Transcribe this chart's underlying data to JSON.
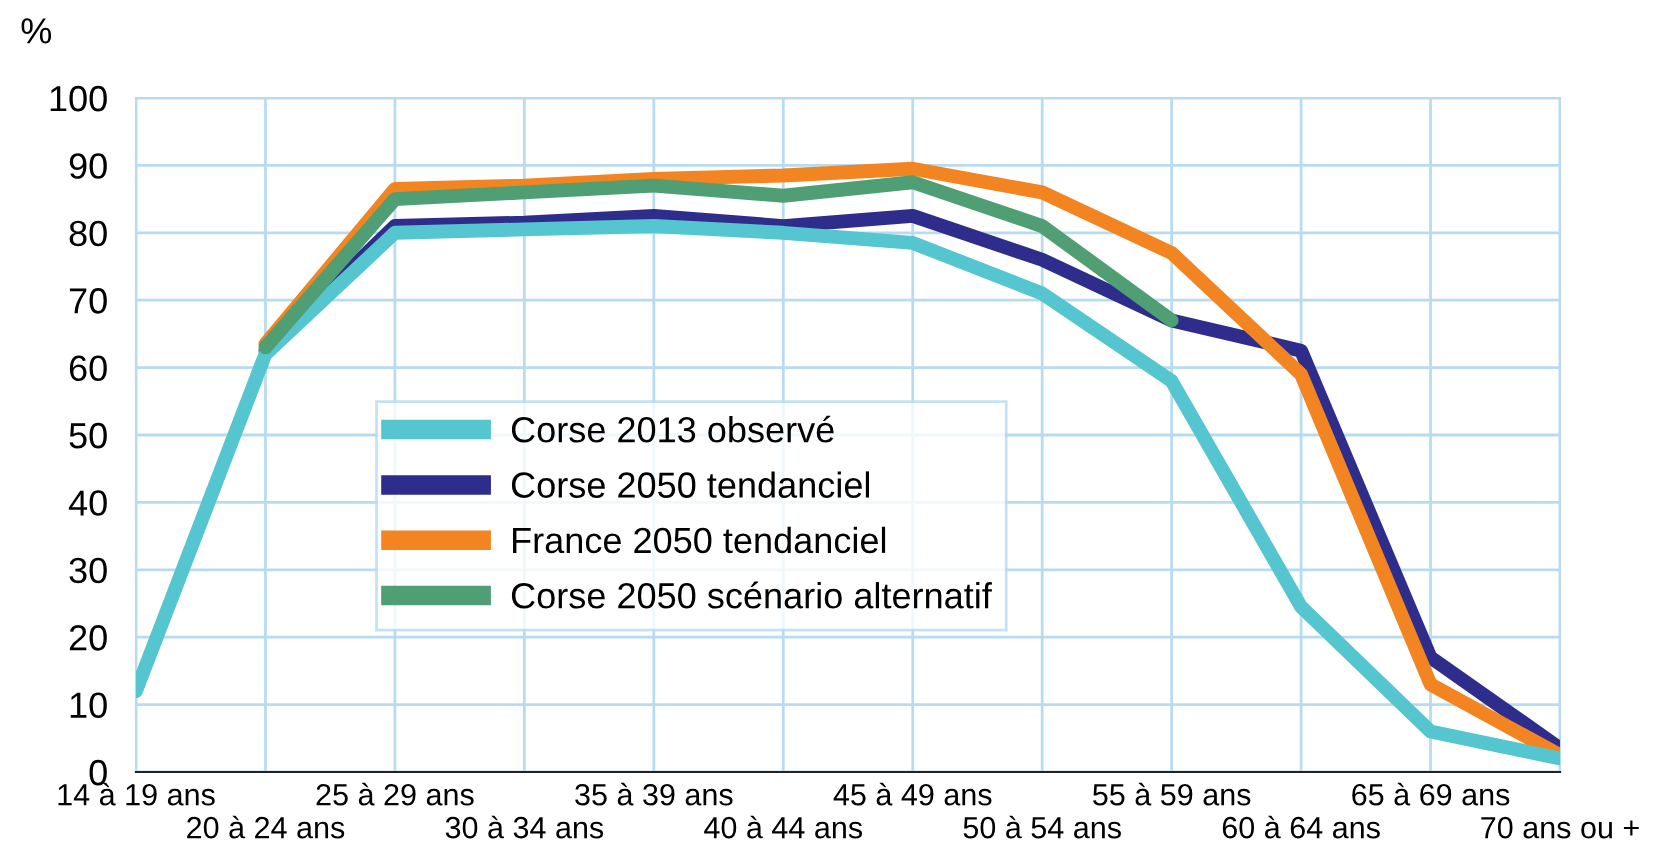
{
  "chart_data": {
    "type": "line",
    "ylabel": "%",
    "categories": [
      "14 à 19 ans",
      "20 à 24 ans",
      "25 à 29 ans",
      "30 à 34 ans",
      "35 à 39 ans",
      "40 à 44 ans",
      "45 à 49 ans",
      "50 à 54 ans",
      "55 à 59 ans",
      "60 à 64 ans",
      "65 à 69 ans",
      "70 ans ou +"
    ],
    "series": [
      {
        "name": "Corse 2013 observé",
        "color": "#55c5cf",
        "values": [
          12,
          62,
          80,
          80.5,
          81,
          80,
          78.5,
          71,
          58,
          24.5,
          6,
          2
        ]
      },
      {
        "name": "Corse 2050 tendanciel",
        "color": "#2e2d8c",
        "values": [
          null,
          62.5,
          81,
          81.5,
          82.5,
          81,
          82.5,
          76,
          67,
          62.5,
          17,
          3.5
        ]
      },
      {
        "name": "France 2050 tendanciel",
        "color": "#f28421",
        "values": [
          null,
          63.5,
          86.5,
          87,
          88,
          88.5,
          89.5,
          86,
          77,
          59,
          13,
          2.5
        ]
      },
      {
        "name": "Corse 2050 scénario alternatif",
        "color": "#4f9e74",
        "values": [
          null,
          63,
          85,
          86,
          87,
          85.5,
          87.5,
          81,
          67,
          null,
          null,
          null
        ]
      }
    ],
    "ylim": [
      0,
      100
    ],
    "yticks": [
      0,
      10,
      20,
      30,
      40,
      50,
      60,
      70,
      80,
      90,
      100
    ],
    "grid": true,
    "legend": "center",
    "marker": "none",
    "line_style": "solid"
  }
}
